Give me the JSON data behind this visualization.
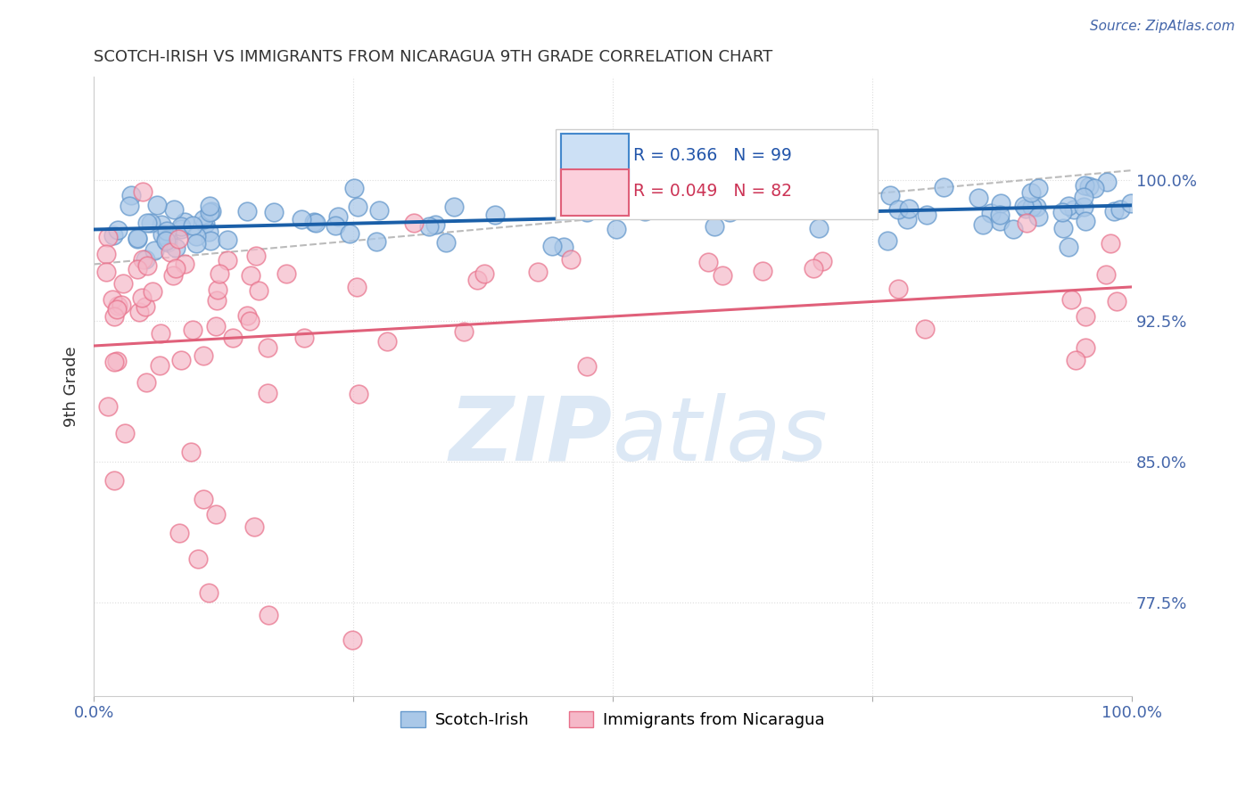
{
  "title": "SCOTCH-IRISH VS IMMIGRANTS FROM NICARAGUA 9TH GRADE CORRELATION CHART",
  "source": "Source: ZipAtlas.com",
  "ylabel": "9th Grade",
  "y_ticks": [
    0.775,
    0.85,
    0.925,
    1.0
  ],
  "y_tick_labels": [
    "77.5%",
    "85.0%",
    "92.5%",
    "100.0%"
  ],
  "x_lim": [
    0.0,
    1.0
  ],
  "y_lim": [
    0.725,
    1.055
  ],
  "legend_entry1": "R = 0.366   N = 99",
  "legend_entry2": "R = 0.049   N = 82",
  "legend_label1": "Scotch-Irish",
  "legend_label2": "Immigrants from Nicaragua",
  "blue_color": "#aac8e8",
  "blue_edge_color": "#6699cc",
  "blue_line_color": "#1a5fa8",
  "pink_color": "#f5b8c8",
  "pink_edge_color": "#e8708a",
  "pink_line_color": "#e0607a",
  "dashed_line_color": "#cccccc",
  "watermark_color": "#dce8f5",
  "title_color": "#333333",
  "axis_color": "#4466aa",
  "grid_color": "#dddddd"
}
